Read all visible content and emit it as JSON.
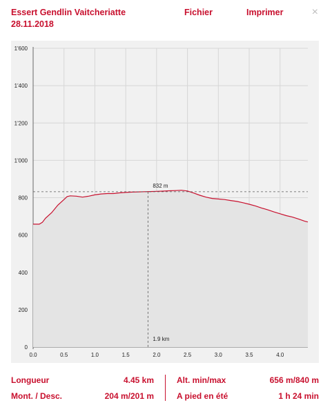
{
  "header": {
    "title": "Essert Gendlin Vaitcheriatte",
    "date": "28.11.2018",
    "file_label": "Fichier",
    "print_label": "Imprimer",
    "close_symbol": "×"
  },
  "chart_data": {
    "type": "area",
    "x_unit": "km",
    "y_unit": "m",
    "xlim": [
      0,
      4.45
    ],
    "ylim": [
      0,
      1600
    ],
    "x_ticks": [
      "0.0",
      "0.5",
      "1.0",
      "1.5",
      "2.0",
      "2.5",
      "3.0",
      "3.5",
      "4.0"
    ],
    "y_ticks": [
      "0",
      "200",
      "400",
      "600",
      "800",
      "1'000",
      "1'200",
      "1'400",
      "1'600"
    ],
    "grid": true,
    "marker": {
      "x": 1.86,
      "y": 832,
      "x_label": "1.9 km",
      "y_label": "832 m"
    },
    "series": [
      {
        "color": "#c8102e",
        "x": [
          0,
          0.1,
          0.15,
          0.2,
          0.3,
          0.4,
          0.5,
          0.55,
          0.6,
          0.7,
          0.8,
          0.9,
          1.0,
          1.1,
          1.2,
          1.3,
          1.4,
          1.5,
          1.6,
          1.7,
          1.8,
          1.9,
          2.0,
          2.1,
          2.2,
          2.3,
          2.4,
          2.5,
          2.6,
          2.7,
          2.8,
          2.9,
          3.0,
          3.1,
          3.2,
          3.3,
          3.4,
          3.5,
          3.6,
          3.7,
          3.8,
          3.9,
          4.0,
          4.1,
          4.2,
          4.3,
          4.4,
          4.45
        ],
        "y": [
          658,
          658,
          668,
          690,
          720,
          760,
          790,
          806,
          810,
          808,
          803,
          808,
          815,
          820,
          822,
          822,
          826,
          828,
          830,
          831,
          832,
          833,
          834,
          835,
          837,
          838,
          840,
          836,
          825,
          813,
          803,
          796,
          793,
          790,
          785,
          780,
          773,
          765,
          756,
          745,
          735,
          724,
          714,
          704,
          696,
          686,
          674,
          670
        ]
      }
    ]
  },
  "stats": {
    "length_label": "Longueur",
    "length_value": "4.45 km",
    "updown_label": "Mont. / Desc.",
    "updown_value": "204 m/201 m",
    "alt_label": "Alt. min/max",
    "alt_value": "656 m/840 m",
    "time_label": "A pied en été",
    "time_value": "1 h 24 min"
  }
}
